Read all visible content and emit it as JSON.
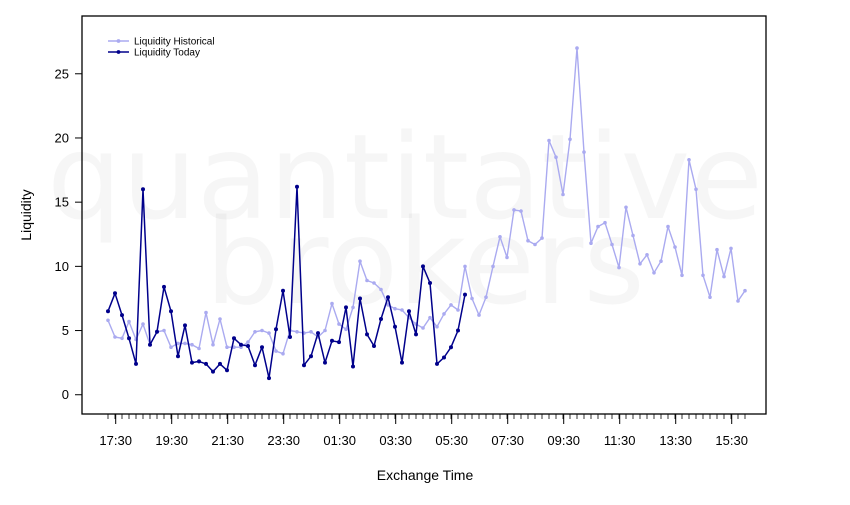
{
  "watermark": {
    "line1": "quantitative",
    "line2": "brokers"
  },
  "chart_data": {
    "type": "line",
    "xlabel": "Exchange Time",
    "ylabel": "Liquidity",
    "ylim": [
      -1.5,
      29.5
    ],
    "yticks": [
      0,
      5,
      10,
      15,
      20,
      25
    ],
    "xticks": [
      "17:30",
      "19:30",
      "21:30",
      "23:30",
      "01:30",
      "03:30",
      "05:30",
      "07:30",
      "09:30",
      "11:30",
      "13:30",
      "15:30"
    ],
    "grid": false,
    "legend": "top-left",
    "colors": {
      "historical": "#aaaaf0",
      "today": "#00008b"
    },
    "series": [
      {
        "name": "Liquidity Historical",
        "values": [
          5.8,
          4.5,
          4.4,
          5.7,
          4.3,
          5.5,
          3.9,
          4.9,
          5.0,
          3.7,
          4.0,
          4.0,
          3.9,
          3.6,
          6.4,
          3.9,
          5.9,
          3.7,
          3.7,
          3.7,
          4.1,
          4.9,
          5.0,
          4.8,
          3.4,
          3.2,
          5.0,
          4.9,
          4.8,
          4.9,
          4.5,
          5.0,
          7.1,
          5.5,
          5.1,
          6.8,
          10.4,
          8.9,
          8.7,
          8.2,
          7.0,
          6.7,
          6.6,
          6.0,
          5.5,
          5.2,
          6.0,
          5.3,
          6.3,
          7.0,
          6.6,
          10.0,
          7.5,
          6.2,
          7.6,
          10.0,
          12.3,
          10.7,
          14.4,
          14.3,
          12.0,
          11.7,
          12.2,
          19.8,
          18.5,
          15.6,
          19.9,
          27.0,
          18.9,
          11.8,
          13.1,
          13.4,
          11.7,
          9.9,
          14.6,
          12.4,
          10.2,
          10.9,
          9.5,
          10.4,
          13.1,
          11.5,
          9.3,
          18.3,
          16.0,
          9.3,
          7.6,
          11.3,
          9.2,
          11.4,
          7.3,
          8.1
        ]
      },
      {
        "name": "Liquidity Today",
        "values": [
          6.5,
          7.9,
          6.2,
          4.4,
          2.4,
          16.0,
          3.9,
          4.9,
          8.4,
          6.5,
          3.0,
          5.4,
          2.5,
          2.6,
          2.4,
          1.8,
          2.4,
          1.9,
          4.4,
          3.9,
          3.8,
          2.3,
          3.7,
          1.3,
          5.1,
          8.1,
          4.5,
          16.2,
          2.3,
          3.0,
          4.8,
          2.5,
          4.2,
          4.1,
          6.8,
          2.2,
          7.5,
          4.7,
          3.8,
          5.9,
          7.6,
          5.3,
          2.5,
          6.5,
          4.7,
          10.0,
          8.7,
          2.4,
          2.9,
          3.7,
          5.0,
          7.8
        ]
      }
    ]
  }
}
